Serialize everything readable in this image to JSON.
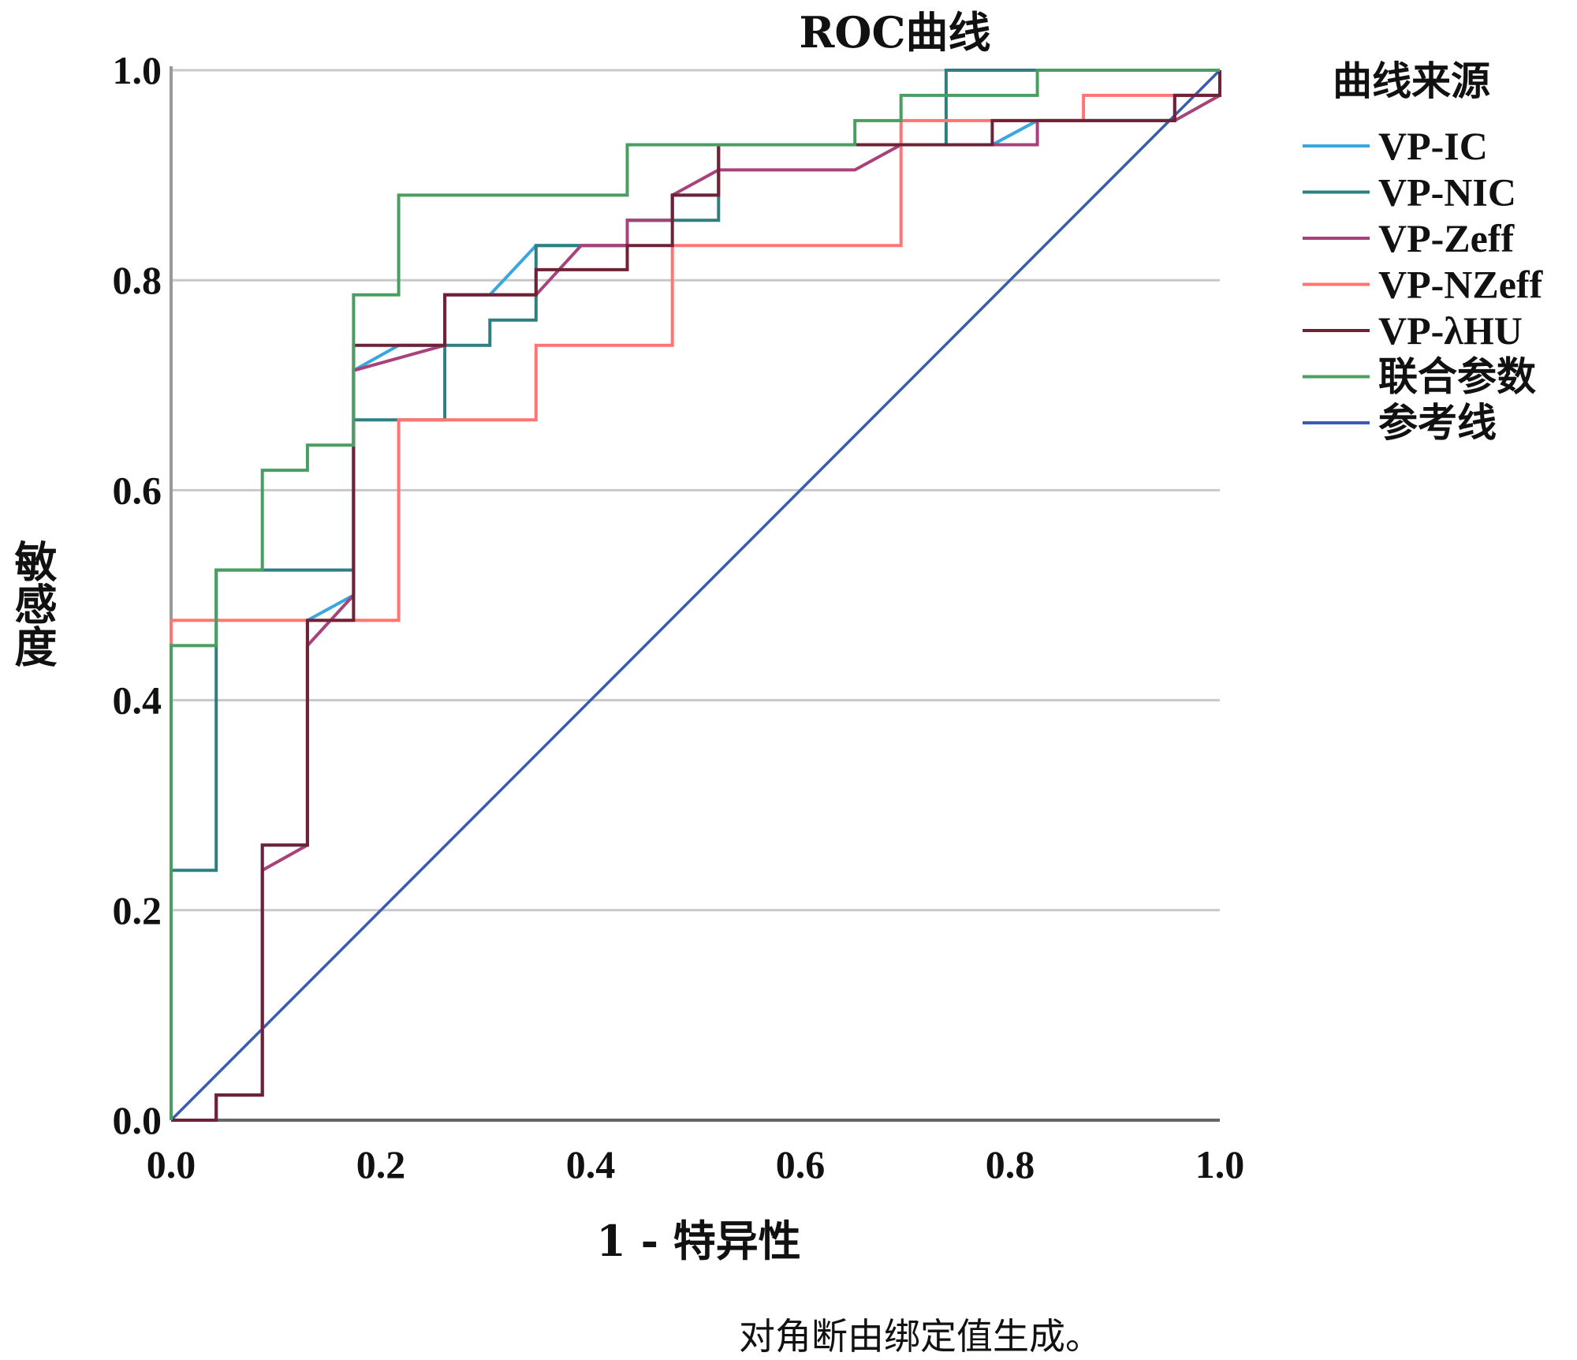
{
  "chart_data": {
    "type": "line",
    "title": "ROC曲线",
    "xlabel": "1 - 特异性",
    "ylabel": "敏感度",
    "xlim": [
      0,
      1
    ],
    "ylim": [
      0,
      1
    ],
    "xticks": [
      "0.0",
      "0.2",
      "0.4",
      "0.6",
      "0.8",
      "1.0"
    ],
    "yticks": [
      "0.0",
      "0.2",
      "0.4",
      "0.6",
      "0.8",
      "1.0"
    ],
    "grid": "horizontal",
    "legend_title": "曲线来源",
    "legend_position": "right",
    "footnote": "对角断由绑定值生成。",
    "series": [
      {
        "name": "VP-IC",
        "color": "#3aa6e0",
        "points": [
          [
            0,
            0
          ],
          [
            0.043,
            0
          ],
          [
            0.043,
            0.024
          ],
          [
            0.087,
            0.024
          ],
          [
            0.087,
            0.262
          ],
          [
            0.13,
            0.262
          ],
          [
            0.13,
            0.476
          ],
          [
            0.174,
            0.5
          ],
          [
            0.174,
            0.714
          ],
          [
            0.217,
            0.738
          ],
          [
            0.261,
            0.738
          ],
          [
            0.261,
            0.786
          ],
          [
            0.304,
            0.786
          ],
          [
            0.348,
            0.833
          ],
          [
            0.435,
            0.833
          ],
          [
            0.435,
            0.857
          ],
          [
            0.478,
            0.857
          ],
          [
            0.478,
            0.881
          ],
          [
            0.522,
            0.881
          ],
          [
            0.522,
            0.929
          ],
          [
            0.783,
            0.929
          ],
          [
            0.826,
            0.952
          ],
          [
            0.957,
            0.952
          ],
          [
            0.957,
            0.976
          ],
          [
            1,
            0.976
          ],
          [
            1,
            1
          ]
        ]
      },
      {
        "name": "VP-NIC",
        "color": "#2e7f82",
        "points": [
          [
            0,
            0
          ],
          [
            0,
            0.238
          ],
          [
            0.043,
            0.238
          ],
          [
            0.043,
            0.524
          ],
          [
            0.174,
            0.524
          ],
          [
            0.174,
            0.667
          ],
          [
            0.261,
            0.667
          ],
          [
            0.261,
            0.738
          ],
          [
            0.304,
            0.738
          ],
          [
            0.304,
            0.762
          ],
          [
            0.348,
            0.762
          ],
          [
            0.348,
            0.833
          ],
          [
            0.435,
            0.833
          ],
          [
            0.435,
            0.857
          ],
          [
            0.522,
            0.857
          ],
          [
            0.522,
            0.929
          ],
          [
            0.739,
            0.929
          ],
          [
            0.739,
            1
          ],
          [
            1,
            1
          ]
        ]
      },
      {
        "name": "VP-Zeff",
        "color": "#a8427a",
        "points": [
          [
            0,
            0
          ],
          [
            0.043,
            0
          ],
          [
            0.043,
            0.024
          ],
          [
            0.087,
            0.024
          ],
          [
            0.087,
            0.238
          ],
          [
            0.13,
            0.262
          ],
          [
            0.13,
            0.452
          ],
          [
            0.174,
            0.5
          ],
          [
            0.174,
            0.714
          ],
          [
            0.261,
            0.738
          ],
          [
            0.261,
            0.786
          ],
          [
            0.348,
            0.786
          ],
          [
            0.391,
            0.833
          ],
          [
            0.435,
            0.833
          ],
          [
            0.435,
            0.857
          ],
          [
            0.478,
            0.857
          ],
          [
            0.478,
            0.881
          ],
          [
            0.522,
            0.905
          ],
          [
            0.652,
            0.905
          ],
          [
            0.696,
            0.929
          ],
          [
            0.783,
            0.929
          ],
          [
            0.826,
            0.929
          ],
          [
            0.826,
            0.952
          ],
          [
            0.957,
            0.952
          ],
          [
            1,
            0.976
          ],
          [
            1,
            1
          ]
        ]
      },
      {
        "name": "VP-NZeff",
        "color": "#ff7474",
        "points": [
          [
            0,
            0
          ],
          [
            0,
            0.476
          ],
          [
            0.217,
            0.476
          ],
          [
            0.217,
            0.667
          ],
          [
            0.348,
            0.667
          ],
          [
            0.348,
            0.738
          ],
          [
            0.478,
            0.738
          ],
          [
            0.478,
            0.833
          ],
          [
            0.696,
            0.833
          ],
          [
            0.696,
            0.952
          ],
          [
            0.87,
            0.952
          ],
          [
            0.87,
            0.976
          ],
          [
            1,
            0.976
          ],
          [
            1,
            1
          ]
        ]
      },
      {
        "name": "VP-λHU",
        "color": "#6e2236",
        "points": [
          [
            0,
            0
          ],
          [
            0.043,
            0
          ],
          [
            0.043,
            0.024
          ],
          [
            0.087,
            0.024
          ],
          [
            0.087,
            0.262
          ],
          [
            0.13,
            0.262
          ],
          [
            0.13,
            0.476
          ],
          [
            0.174,
            0.476
          ],
          [
            0.174,
            0.738
          ],
          [
            0.261,
            0.738
          ],
          [
            0.261,
            0.786
          ],
          [
            0.348,
            0.786
          ],
          [
            0.348,
            0.81
          ],
          [
            0.435,
            0.81
          ],
          [
            0.435,
            0.833
          ],
          [
            0.478,
            0.833
          ],
          [
            0.478,
            0.881
          ],
          [
            0.522,
            0.881
          ],
          [
            0.522,
            0.929
          ],
          [
            0.783,
            0.929
          ],
          [
            0.783,
            0.952
          ],
          [
            0.957,
            0.952
          ],
          [
            0.957,
            0.976
          ],
          [
            1,
            0.976
          ],
          [
            1,
            1
          ]
        ]
      },
      {
        "name": "联合参数",
        "color": "#4a9e62",
        "points": [
          [
            0,
            0
          ],
          [
            0,
            0.452
          ],
          [
            0.043,
            0.452
          ],
          [
            0.043,
            0.524
          ],
          [
            0.087,
            0.524
          ],
          [
            0.087,
            0.619
          ],
          [
            0.13,
            0.619
          ],
          [
            0.13,
            0.643
          ],
          [
            0.174,
            0.643
          ],
          [
            0.174,
            0.786
          ],
          [
            0.217,
            0.786
          ],
          [
            0.217,
            0.881
          ],
          [
            0.435,
            0.881
          ],
          [
            0.435,
            0.929
          ],
          [
            0.652,
            0.929
          ],
          [
            0.652,
            0.952
          ],
          [
            0.696,
            0.952
          ],
          [
            0.696,
            0.976
          ],
          [
            0.826,
            0.976
          ],
          [
            0.826,
            1
          ],
          [
            1,
            1
          ]
        ]
      },
      {
        "name": "参考线",
        "color": "#3a5cb0",
        "points": [
          [
            0,
            0
          ],
          [
            1,
            1
          ]
        ]
      }
    ]
  }
}
